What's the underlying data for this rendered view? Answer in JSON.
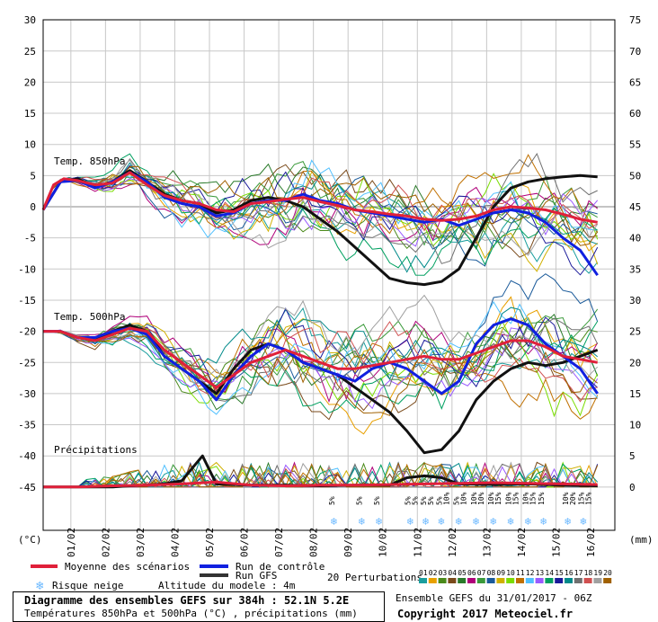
{
  "chart_data": {
    "type": "line",
    "title": "Diagramme des ensembles GEFS sur 384h : 52.1N 5.2E",
    "subtitle": "Températures 850hPa et 500hPa (°C) , précipitations (mm)",
    "left_axis": {
      "label": "(°C)",
      "ticks": [
        30,
        25,
        20,
        15,
        10,
        5,
        0,
        -5,
        -10,
        -15,
        -20,
        -25,
        -30,
        -35,
        -40,
        -45
      ],
      "range": [
        -45,
        30
      ]
    },
    "right_axis": {
      "label": "(mm)",
      "ticks": [
        75,
        70,
        65,
        60,
        55,
        50,
        45,
        40,
        35,
        30,
        25,
        20,
        15,
        10,
        5,
        0
      ],
      "range": [
        0,
        75
      ]
    },
    "x_ticks": [
      "01/02",
      "02/02",
      "03/02",
      "04/02",
      "05/02",
      "06/02",
      "07/02",
      "08/02",
      "09/02",
      "10/02",
      "11/02",
      "12/02",
      "13/02",
      "14/02",
      "15/02",
      "16/02"
    ],
    "panels": [
      "Temp. 850hPa",
      "Temp. 500hPa",
      "Précipitations"
    ],
    "legend": {
      "mean": "Moyenne des scénarios",
      "control": "Run de contrôle",
      "gfs": "Run GFS",
      "snow": "Risque neige",
      "altitude": "Altitude du modele : 4m",
      "perturbations": "20 Perturbations",
      "perturbation_ids": [
        "01",
        "02",
        "03",
        "04",
        "05",
        "06",
        "07",
        "08",
        "09",
        "10",
        "11",
        "12",
        "13",
        "14",
        "15",
        "16",
        "17",
        "18",
        "19",
        "20"
      ],
      "perturbation_colors": [
        "#1a9e9e",
        "#e8a000",
        "#4a8a1a",
        "#7a4a1a",
        "#2a7a2a",
        "#b0007a",
        "#3a9a3a",
        "#1a5a9a",
        "#d0b000",
        "#7adc00",
        "#c07000",
        "#50c0ff",
        "#9a5aff",
        "#00a060",
        "#1a1a9a",
        "#008a8a",
        "#707070",
        "#d05050",
        "#a0a0a0",
        "#a06000"
      ]
    },
    "snow_labels": [
      {
        "x": 8.4,
        "pct": [
          "5%"
        ]
      },
      {
        "x": 9.2,
        "pct": [
          "5%"
        ]
      },
      {
        "x": 9.7,
        "pct": [
          "5%"
        ]
      },
      {
        "x": 10.6,
        "pct": [
          "5%",
          "5%"
        ]
      },
      {
        "x": 11.05,
        "pct": [
          "5%",
          "5%"
        ]
      },
      {
        "x": 11.5,
        "pct": [
          "5%",
          "10%"
        ]
      },
      {
        "x": 12.0,
        "pct": [
          "5%",
          "10%"
        ]
      },
      {
        "x": 12.5,
        "pct": [
          "10%",
          "10%"
        ]
      },
      {
        "x": 13.0,
        "pct": [
          "10%",
          "15%"
        ]
      },
      {
        "x": 13.5,
        "pct": [
          "10%",
          "15%"
        ]
      },
      {
        "x": 14.0,
        "pct": [
          "10%",
          "15%"
        ]
      },
      {
        "x": 14.45,
        "pct": [
          "15%"
        ]
      },
      {
        "x": 15.15,
        "pct": [
          "10%",
          "20%"
        ]
      },
      {
        "x": 15.6,
        "pct": [
          "15%",
          "15%"
        ]
      }
    ],
    "series": [
      {
        "name": "Moyenne des scénarios",
        "panel": "850",
        "color": "#e0203a",
        "x": [
          0,
          0.3,
          0.6,
          1,
          1.5,
          2,
          2.5,
          3,
          3.5,
          4,
          4.5,
          5,
          5.5,
          6,
          6.5,
          7,
          7.5,
          8,
          8.5,
          9,
          9.5,
          10,
          10.5,
          11,
          11.5,
          12,
          12.5,
          13,
          13.5,
          14,
          14.5,
          15,
          15.5,
          16
        ],
        "y": [
          -0.5,
          3.5,
          4.5,
          4.2,
          3.5,
          3.8,
          5.5,
          3.5,
          1.8,
          1.0,
          0.5,
          -0.5,
          -0.8,
          0.5,
          0.8,
          1.2,
          1.5,
          0.8,
          0.2,
          -0.5,
          -0.8,
          -1.2,
          -1.5,
          -2.0,
          -2.2,
          -2.0,
          -1.5,
          -0.5,
          0.0,
          -0.2,
          -0.5,
          -1.2,
          -2.0,
          -2.5
        ]
      },
      {
        "name": "Run de contrôle",
        "panel": "850",
        "color": "#1020e0",
        "x": [
          0,
          0.5,
          1,
          1.5,
          2,
          2.5,
          3,
          3.5,
          4,
          4.5,
          5,
          5.5,
          6,
          6.5,
          7,
          7.5,
          8,
          8.5,
          9,
          9.5,
          10,
          10.5,
          11,
          11.5,
          12,
          12.5,
          13,
          13.5,
          14,
          14.5,
          15,
          15.5,
          16
        ],
        "y": [
          -0.5,
          4,
          4.2,
          3,
          4,
          5.5,
          4,
          1.5,
          0.5,
          0,
          -1.5,
          -1,
          0.5,
          1,
          1,
          2,
          1,
          0.5,
          -0.5,
          -1,
          -1.5,
          -2,
          -2.5,
          -2,
          -3,
          -2,
          -1,
          -0.5,
          -1,
          -2.5,
          -5,
          -7,
          -11
        ]
      },
      {
        "name": "Run GFS",
        "panel": "850",
        "color": "#111111",
        "x": [
          0,
          0.5,
          1,
          1.5,
          2,
          2.5,
          3,
          3.5,
          4,
          4.5,
          5,
          5.5,
          6,
          6.5,
          7,
          7.5,
          8,
          8.5,
          9,
          9.5,
          10,
          10.5,
          11,
          11.5,
          12,
          12.5,
          13,
          13.5,
          14,
          14.5,
          15,
          15.5,
          16
        ],
        "y": [
          -0.5,
          4,
          4.5,
          3.2,
          4,
          5.8,
          4,
          2,
          1,
          0.5,
          -1,
          -0.5,
          1,
          1.5,
          1,
          0,
          -2,
          -4,
          -6.5,
          -9,
          -11.5,
          -12.2,
          -12.5,
          -12.0,
          -10,
          -5,
          0,
          3,
          4,
          4.5,
          4.8,
          5,
          4.8
        ]
      },
      {
        "name": "Moyenne des scénarios",
        "panel": "500",
        "color": "#e0203a",
        "x": [
          0,
          0.5,
          1,
          1.5,
          2,
          2.5,
          3,
          3.5,
          4,
          4.5,
          5,
          5.5,
          6,
          6.5,
          7,
          7.5,
          8,
          8.5,
          9,
          9.5,
          10,
          10.5,
          11,
          11.5,
          12,
          12.5,
          13,
          13.5,
          14,
          14.5,
          15,
          15.5,
          16
        ],
        "y": [
          -20,
          -20,
          -21,
          -21.5,
          -20.5,
          -19.5,
          -20,
          -23,
          -25,
          -27,
          -29,
          -27,
          -25,
          -24,
          -23,
          -24,
          -25,
          -26,
          -26,
          -25.5,
          -25,
          -24.5,
          -24,
          -24.5,
          -24.5,
          -23.5,
          -22.5,
          -21.5,
          -21.5,
          -22.5,
          -24,
          -24.5,
          -25
        ]
      },
      {
        "name": "Run de contrôle",
        "panel": "500",
        "color": "#1020e0",
        "x": [
          0,
          0.5,
          1,
          1.5,
          2,
          2.5,
          3,
          3.5,
          4,
          4.5,
          5,
          5.5,
          6,
          6.5,
          7,
          7.5,
          8,
          8.5,
          9,
          9.5,
          10,
          10.5,
          11,
          11.5,
          12,
          12.5,
          13,
          13.5,
          14,
          14.5,
          15,
          15.5,
          16
        ],
        "y": [
          -20,
          -20,
          -21,
          -21,
          -20,
          -19.5,
          -20.5,
          -24,
          -26,
          -28,
          -31,
          -27,
          -24,
          -22,
          -23,
          -25,
          -26,
          -27,
          -28,
          -26,
          -25,
          -26,
          -28,
          -30,
          -28,
          -22,
          -19,
          -18,
          -19,
          -22,
          -24,
          -26,
          -30
        ]
      },
      {
        "name": "Run GFS",
        "panel": "500",
        "color": "#111111",
        "x": [
          0,
          0.5,
          1,
          1.5,
          2,
          2.5,
          3,
          3.5,
          4,
          4.5,
          5,
          5.5,
          6,
          6.5,
          7,
          7.5,
          8,
          8.5,
          9,
          9.5,
          10,
          10.5,
          11,
          11.5,
          12,
          12.5,
          13,
          13.5,
          14,
          14.5,
          15,
          15.5,
          16
        ],
        "y": [
          -20,
          -20,
          -21,
          -21.5,
          -20,
          -19,
          -20,
          -24,
          -26,
          -28,
          -30,
          -26,
          -23,
          -22,
          -23,
          -25,
          -26,
          -27,
          -29,
          -31,
          -33,
          -36,
          -39.5,
          -39,
          -36,
          -31,
          -28,
          -26,
          -25,
          -25.5,
          -25,
          -24,
          -23
        ]
      },
      {
        "name": "Moyenne des scénarios",
        "panel": "precip",
        "color": "#e0203a",
        "x": [
          0,
          1,
          2,
          3,
          4,
          5,
          6,
          7,
          8,
          9,
          10,
          11,
          12,
          13,
          14,
          15,
          16
        ],
        "y": [
          0,
          0,
          0.2,
          0.3,
          0.5,
          0.8,
          0.3,
          0.2,
          0.3,
          0.3,
          0.4,
          0.5,
          0.6,
          0.7,
          0.6,
          0.5,
          0.4
        ]
      },
      {
        "name": "Run GFS",
        "panel": "precip",
        "color": "#111111",
        "x": [
          0,
          1,
          1.5,
          2,
          2.5,
          3,
          3.5,
          4,
          4.3,
          4.6,
          5,
          6,
          7,
          8,
          9,
          10,
          10.5,
          11,
          11.5,
          12,
          13,
          14,
          15,
          16
        ],
        "y": [
          0,
          0,
          0,
          0,
          0.2,
          0.3,
          0.5,
          1,
          3,
          5,
          0.5,
          0.3,
          0.3,
          0.2,
          0.3,
          0.3,
          1.5,
          1.8,
          1.5,
          0.5,
          0.4,
          0.5,
          0.3,
          0.2
        ]
      }
    ]
  },
  "footer": {
    "title": "Diagramme des ensembles GEFS sur 384h : 52.1N 5.2E",
    "subtitle": "Températures 850hPa et 500hPa (°C) , précipitations (mm)",
    "run": "Ensemble GEFS du 31/01/2017 - 06Z",
    "copyright": "Copyright 2017 Meteociel.fr"
  }
}
